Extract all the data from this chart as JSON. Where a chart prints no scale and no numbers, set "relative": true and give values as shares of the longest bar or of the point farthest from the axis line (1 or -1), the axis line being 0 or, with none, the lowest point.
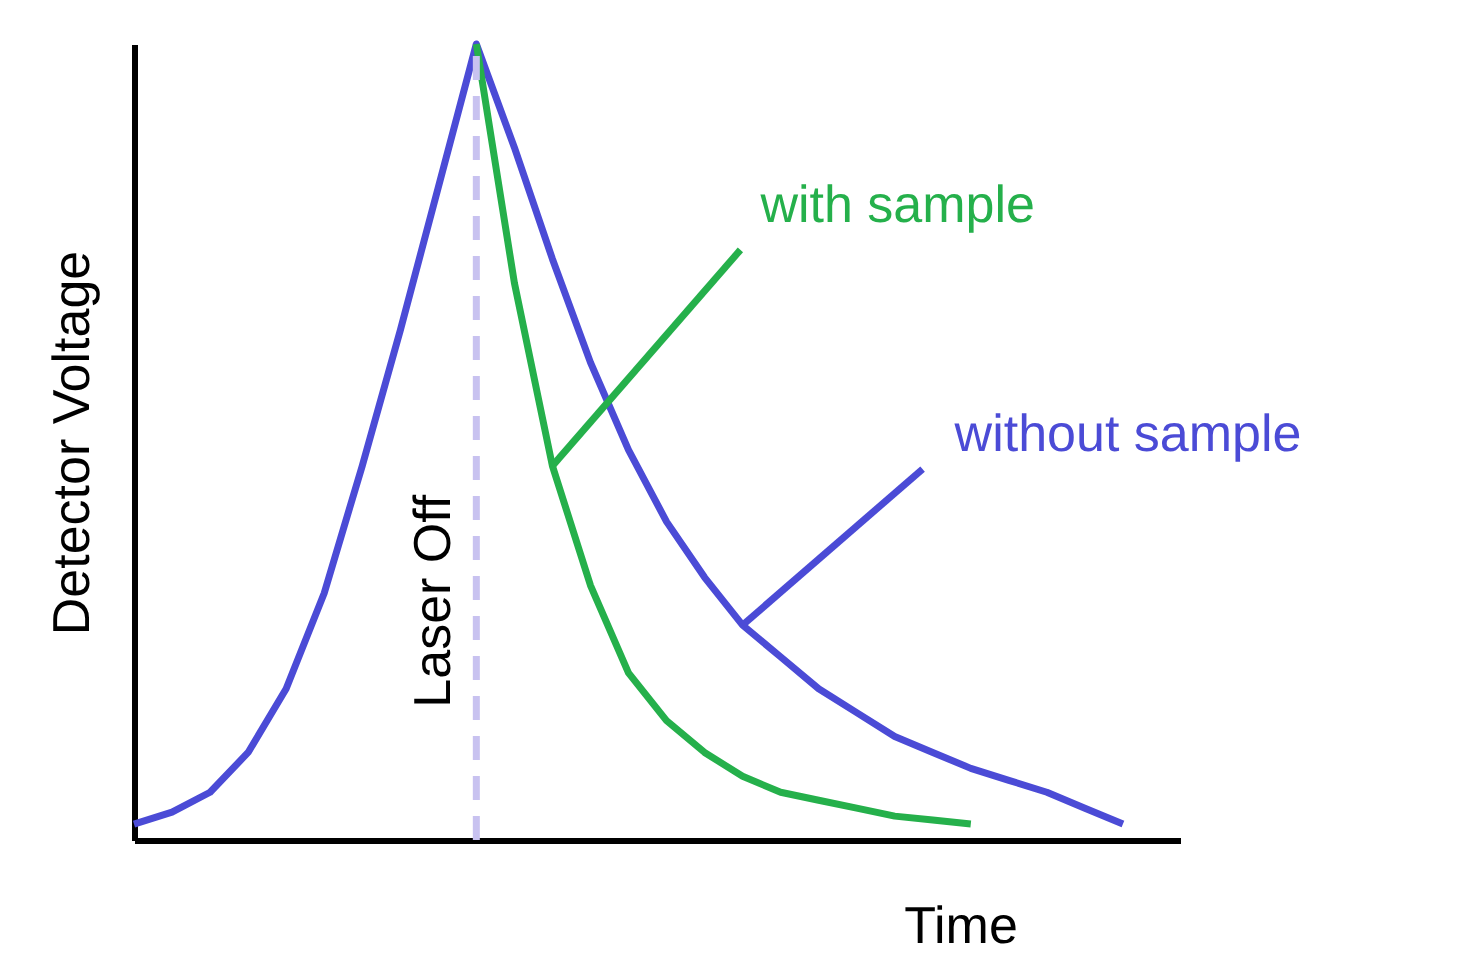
{
  "chart_data": {
    "type": "line",
    "relative": true,
    "xlabel": "Time",
    "ylabel": "Detector Voltage",
    "marker": "none",
    "line_style": "solid",
    "categories": [
      null,
      null,
      null,
      null,
      null,
      null,
      null,
      null,
      null,
      null,
      null,
      null,
      null,
      null,
      null,
      null,
      null,
      null,
      null,
      null,
      null,
      null,
      null,
      null,
      null,
      null,
      null
    ],
    "series": [
      {
        "name": "without sample",
        "color": "#4b4bd6",
        "values": [
          0.02,
          0.035,
          0.06,
          0.11,
          0.19,
          0.31,
          0.47,
          0.64,
          0.82,
          1,
          0.87,
          0.73,
          0.6,
          0.49,
          0.4,
          0.33,
          0.27,
          0.23,
          0.19,
          0.16,
          0.13,
          0.11,
          0.09,
          0.075,
          0.06,
          0.04,
          0.02
        ]
      },
      {
        "name": "with sample",
        "color": "#25b04b",
        "values": [
          null,
          null,
          null,
          null,
          null,
          null,
          null,
          null,
          null,
          1,
          0.7,
          0.47,
          0.32,
          0.21,
          0.15,
          0.11,
          0.08,
          0.06,
          0.05,
          0.04,
          0.03,
          0.025,
          0.02,
          null,
          null,
          null,
          null
        ]
      }
    ],
    "annotations": [
      "Laser Off"
    ]
  }
}
